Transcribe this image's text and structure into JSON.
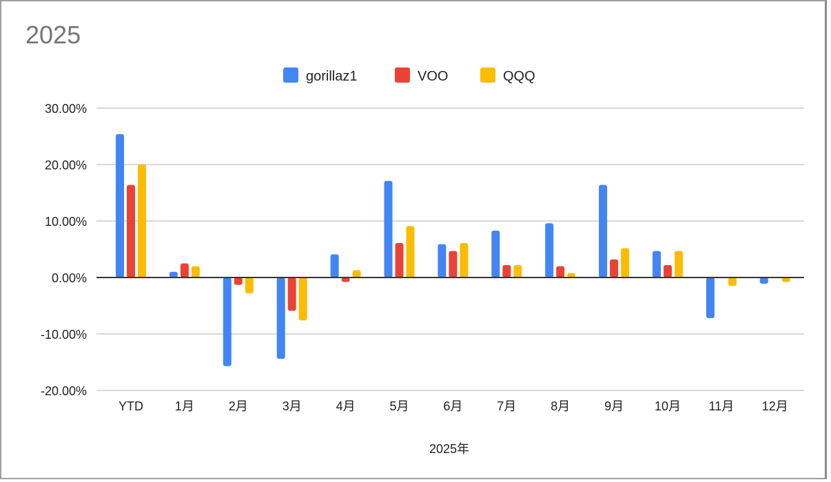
{
  "chart_data": {
    "type": "bar",
    "title": "2025",
    "xlabel": "2025年",
    "ylabel": "",
    "ylim": [
      -20,
      30
    ],
    "yticks": [
      "30.00%",
      "20.00%",
      "10.00%",
      "0.00%",
      "-10.00%",
      "-20.00%"
    ],
    "ytick_values": [
      30,
      20,
      10,
      0,
      -10,
      -20
    ],
    "grid": true,
    "legend": "top-center",
    "categories": [
      "YTD",
      "1月",
      "2月",
      "3月",
      "4月",
      "5月",
      "6月",
      "7月",
      "8月",
      "9月",
      "10月",
      "11月",
      "12月"
    ],
    "series": [
      {
        "name": "gorillaz1",
        "color": "#4285f4",
        "values": [
          25.4,
          1.0,
          -15.7,
          -14.4,
          4.1,
          17.1,
          5.9,
          8.3,
          9.6,
          16.4,
          4.7,
          -7.2,
          -1.1
        ]
      },
      {
        "name": "VOO",
        "color": "#ea4335",
        "values": [
          16.4,
          2.5,
          -1.3,
          -5.9,
          -0.8,
          6.1,
          4.7,
          2.2,
          2.0,
          3.2,
          2.2,
          -0.1,
          0
        ]
      },
      {
        "name": "QQQ",
        "color": "#fbbc04",
        "values": [
          20.0,
          2.0,
          -2.8,
          -7.6,
          1.3,
          9.1,
          6.1,
          2.2,
          0.8,
          5.2,
          4.7,
          -1.5,
          -0.8
        ]
      }
    ]
  }
}
